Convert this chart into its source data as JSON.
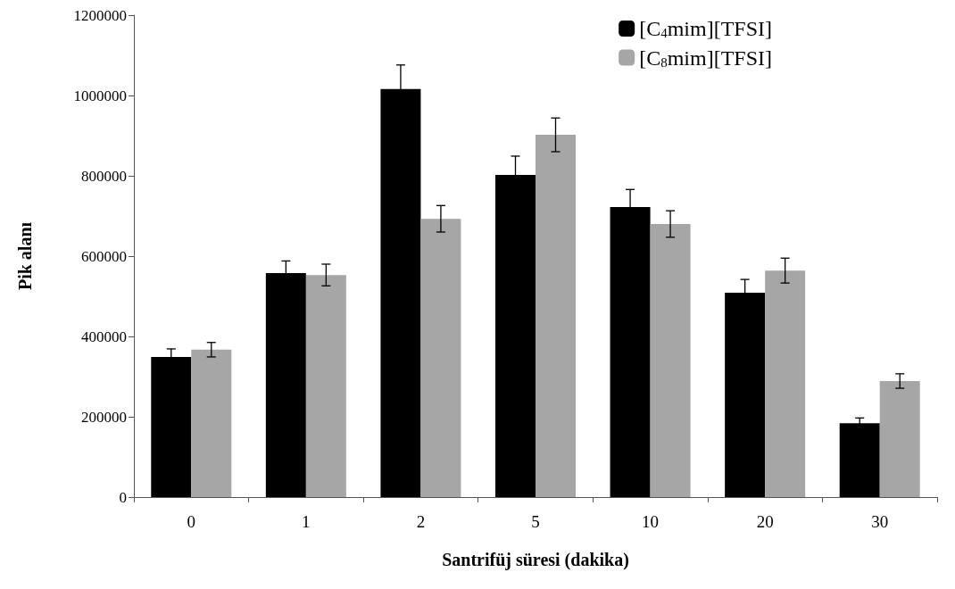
{
  "chart_data": {
    "type": "bar",
    "xlabel": "Santrifüj süresi (dakika)",
    "ylabel": "Pik alanı",
    "categories": [
      "0",
      "1",
      "2",
      "5",
      "10",
      "20",
      "30"
    ],
    "series": [
      {
        "name": "[C$_{4}$mim][TFSI]",
        "color": "#000000",
        "values": [
          349000,
          558000,
          1016000,
          802000,
          722000,
          509000,
          184000
        ],
        "errors": [
          20000,
          30000,
          60000,
          47000,
          44000,
          33000,
          13000
        ]
      },
      {
        "name": "[C$_{8}$mim][TFSI]",
        "color": "#a6a6a6",
        "values": [
          367000,
          553000,
          693000,
          902000,
          680000,
          564000,
          289000
        ],
        "errors": [
          18000,
          27000,
          33000,
          42000,
          33000,
          31000,
          18000
        ]
      }
    ],
    "ylim": [
      0,
      1200000
    ],
    "yticks": [
      0,
      200000,
      400000,
      600000,
      800000,
      1000000,
      1200000
    ],
    "grid": false,
    "legend": "top right"
  }
}
